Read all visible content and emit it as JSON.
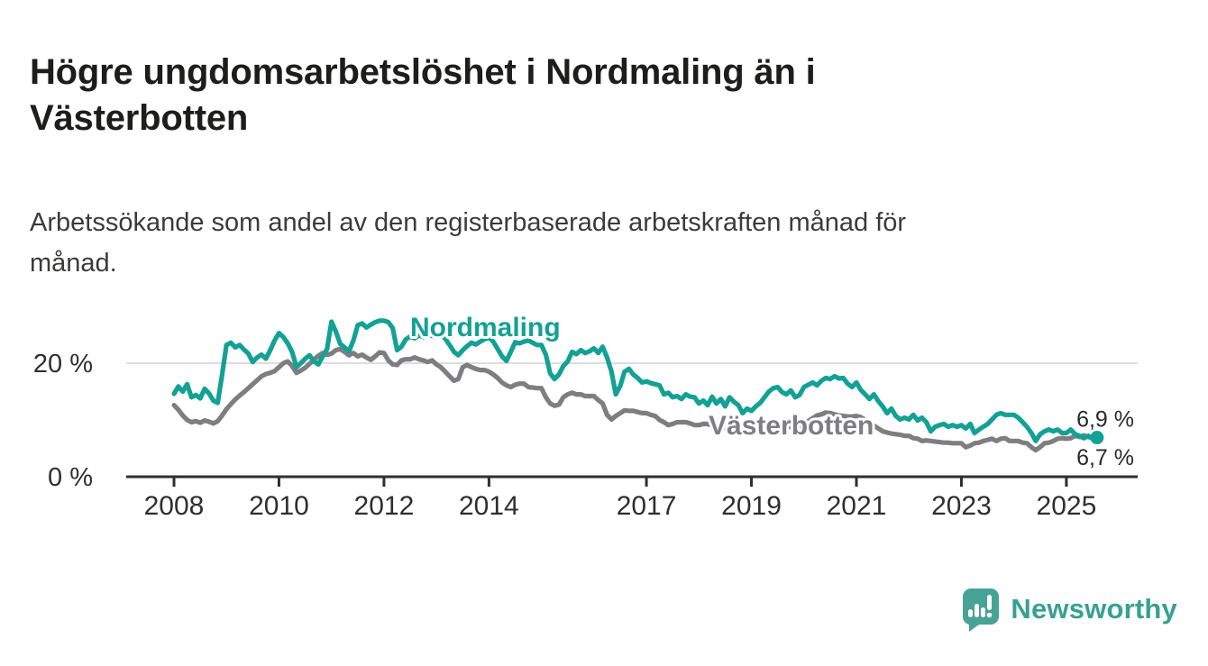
{
  "header": {
    "title": "Högre ungdomsarbetslöshet i Nordmaling än i\nVästerbotten",
    "subtitle": "Arbetssökande som andel av den registerbaserade arbetskraften månad för\nmånad."
  },
  "footer": {
    "brand": "Newsworthy",
    "logo_icon": "speech-bubble-bar-chart-exclamation",
    "brand_color": "#38a094"
  },
  "chart_data": {
    "type": "line",
    "title": "",
    "xlabel": "",
    "ylabel": "",
    "x_unit": "month",
    "x_range_start": "2008-01",
    "x_range_end": "2025-08",
    "ylim": [
      0,
      30
    ],
    "grid": "single-line-at-20",
    "legend_position": "inline-labels",
    "y_ticks": [
      {
        "label": "20 %",
        "value": 20
      },
      {
        "label": "0 %",
        "value": 0
      }
    ],
    "x_ticks": [
      {
        "label": "2008",
        "year": 2008
      },
      {
        "label": "2010",
        "year": 2010
      },
      {
        "label": "2012",
        "year": 2012
      },
      {
        "label": "2014",
        "year": 2014
      },
      {
        "label": "2017",
        "year": 2017
      },
      {
        "label": "2019",
        "year": 2019
      },
      {
        "label": "2021",
        "year": 2021
      },
      {
        "label": "2023",
        "year": 2023
      },
      {
        "label": "2025",
        "year": 2025
      }
    ],
    "series": [
      {
        "name": "Nordmaling",
        "color": "#13a195",
        "end_label": "6,9 %",
        "end_dot": true,
        "values": [
          14.6,
          15.9,
          15.0,
          16.3,
          14.0,
          14.4,
          13.8,
          15.5,
          14.7,
          13.4,
          13.0,
          18.0,
          23.2,
          23.6,
          22.8,
          23.2,
          22.4,
          21.7,
          20.2,
          21.0,
          21.5,
          20.8,
          22.3,
          24.0,
          25.3,
          24.6,
          23.5,
          22.0,
          19.3,
          20.0,
          20.8,
          21.4,
          20.3,
          19.8,
          21.2,
          22.5,
          27.3,
          25.6,
          23.4,
          22.8,
          22.1,
          24.0,
          26.7,
          27.0,
          26.3,
          26.8,
          27.2,
          27.5,
          27.5,
          27.2,
          26.2,
          22.3,
          22.9,
          24.2,
          24.7,
          24.4,
          24.9,
          24.6,
          25.1,
          24.8,
          24.9,
          25.2,
          24.3,
          23.2,
          22.0,
          21.4,
          22.3,
          23.0,
          23.6,
          23.3,
          23.8,
          24.2,
          24.5,
          23.8,
          22.5,
          21.2,
          20.4,
          22.0,
          23.7,
          23.5,
          23.8,
          24.0,
          23.6,
          23.2,
          23.2,
          21.5,
          18.2,
          17.2,
          18.0,
          19.5,
          20.3,
          22.0,
          21.6,
          22.3,
          21.8,
          22.1,
          22.6,
          21.8,
          22.9,
          21.0,
          18.5,
          14.5,
          16.0,
          18.5,
          19.0,
          18.0,
          17.4,
          16.6,
          16.8,
          16.5,
          16.3,
          16.1,
          14.5,
          14.8,
          14.0,
          14.2,
          13.7,
          14.5,
          14.1,
          14.0,
          12.9,
          13.4,
          12.6,
          14.1,
          12.9,
          13.7,
          12.4,
          14.0,
          13.2,
          12.6,
          11.2,
          12.0,
          11.6,
          12.4,
          13.0,
          14.0,
          15.0,
          15.6,
          15.8,
          14.9,
          14.5,
          15.2,
          14.0,
          14.4,
          15.8,
          16.2,
          16.6,
          16.1,
          16.9,
          17.4,
          17.2,
          17.7,
          17.3,
          17.4,
          16.4,
          15.8,
          16.6,
          15.3,
          14.5,
          13.7,
          14.5,
          13.3,
          12.4,
          11.2,
          12.0,
          10.7,
          10.1,
          10.4,
          10.1,
          10.9,
          9.9,
          10.4,
          9.6,
          8.0,
          8.8,
          9.1,
          9.3,
          8.8,
          9.1,
          8.8,
          9.1,
          8.5,
          9.3,
          7.7,
          8.3,
          8.8,
          9.3,
          10.1,
          10.9,
          11.2,
          10.9,
          10.9,
          10.9,
          10.4,
          9.6,
          8.8,
          7.7,
          6.3,
          7.5,
          8.0,
          8.3,
          8.0,
          8.3,
          7.7,
          7.7,
          8.3,
          7.5,
          7.2,
          6.8,
          7.2,
          6.7,
          6.9
        ]
      },
      {
        "name": "Västerbotten",
        "color": "#7e7e82",
        "end_label": "6,7 %",
        "end_dot": false,
        "values": [
          12.6,
          11.8,
          10.8,
          10.0,
          9.6,
          9.8,
          9.5,
          9.9,
          9.7,
          9.4,
          9.8,
          10.8,
          11.9,
          12.8,
          13.6,
          14.3,
          14.9,
          15.6,
          16.3,
          17.0,
          17.7,
          18.1,
          18.3,
          18.6,
          19.3,
          20.0,
          20.3,
          19.5,
          18.3,
          18.7,
          19.2,
          19.9,
          20.6,
          21.3,
          21.8,
          21.5,
          21.7,
          22.3,
          22.5,
          22.0,
          21.4,
          21.8,
          21.2,
          21.5,
          21.0,
          20.6,
          21.2,
          21.9,
          21.8,
          20.5,
          19.8,
          19.7,
          20.5,
          20.7,
          20.7,
          21.0,
          20.7,
          20.5,
          20.2,
          20.5,
          19.8,
          19.3,
          18.5,
          17.7,
          16.9,
          17.2,
          19.3,
          19.7,
          19.3,
          19.0,
          18.8,
          18.8,
          18.5,
          18.0,
          17.4,
          16.6,
          16.1,
          15.8,
          16.2,
          16.4,
          16.4,
          15.8,
          15.7,
          15.6,
          15.6,
          14.0,
          12.9,
          12.5,
          12.7,
          14.0,
          14.5,
          14.8,
          14.5,
          14.5,
          14.2,
          14.2,
          14.2,
          13.5,
          12.9,
          10.9,
          10.1,
          10.7,
          11.2,
          11.7,
          11.6,
          11.6,
          11.4,
          11.2,
          11.2,
          10.9,
          10.7,
          10.0,
          9.6,
          9.1,
          9.3,
          9.6,
          9.6,
          9.6,
          9.4,
          9.1,
          9.1,
          9.3,
          9.3,
          9.0,
          8.7,
          8.5,
          8.7,
          8.9,
          8.7,
          8.5,
          8.4,
          8.5,
          8.6,
          8.4,
          8.5,
          8.7,
          8.5,
          8.4,
          8.6,
          8.8,
          8.7,
          8.8,
          8.9,
          9.0,
          9.5,
          9.8,
          10.3,
          10.8,
          11.0,
          11.3,
          11.2,
          11.0,
          10.8,
          10.7,
          10.6,
          10.6,
          10.7,
          10.5,
          10.0,
          9.5,
          9.0,
          8.5,
          8.0,
          7.8,
          7.6,
          7.5,
          7.4,
          7.2,
          7.2,
          6.8,
          6.7,
          6.3,
          6.4,
          6.3,
          6.2,
          6.1,
          6.0,
          6.0,
          5.9,
          5.9,
          5.9,
          5.2,
          5.5,
          5.9,
          6.0,
          6.3,
          6.5,
          6.7,
          6.3,
          6.7,
          6.8,
          6.3,
          6.3,
          6.3,
          6.0,
          5.9,
          5.2,
          4.7,
          5.2,
          5.9,
          6.0,
          6.3,
          6.7,
          6.8,
          6.7,
          6.8,
          7.2,
          7.0,
          7.3,
          7.0,
          6.8,
          6.7
        ]
      }
    ]
  }
}
